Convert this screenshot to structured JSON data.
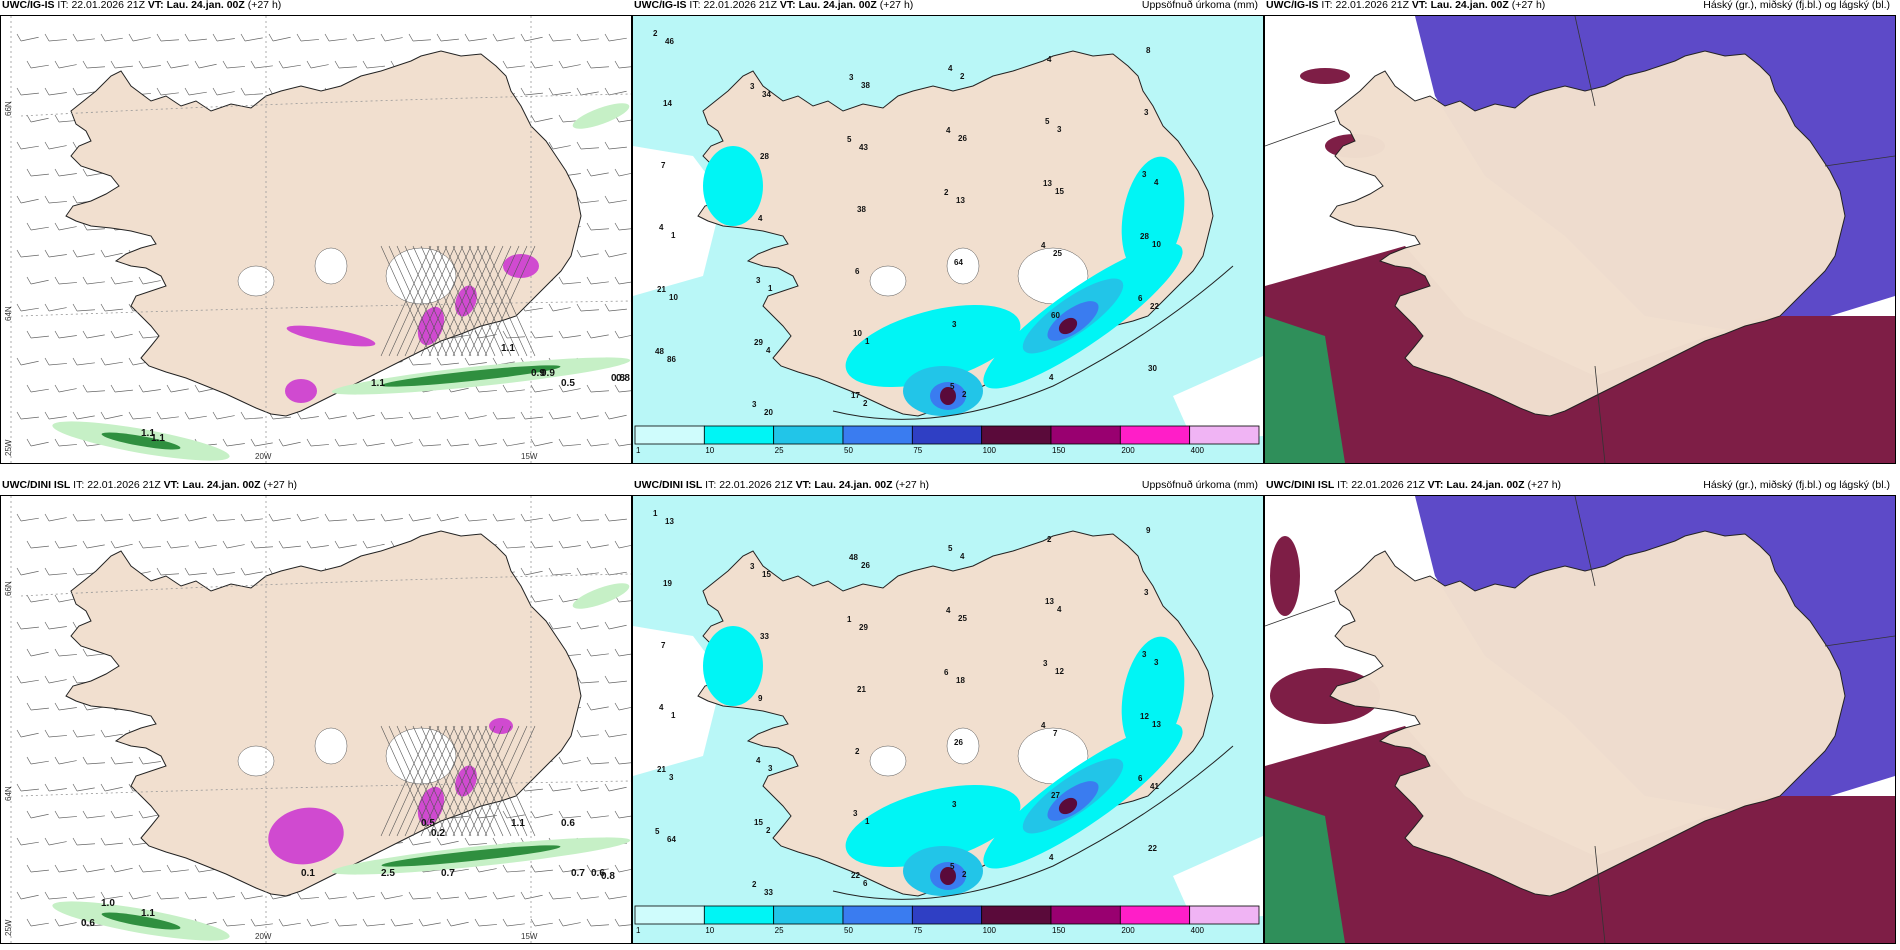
{
  "rows": [
    {
      "model_tag": "UWC/IG-IS",
      "it_label": "IT:",
      "it_value": "22.01.2026 21Z",
      "vt_label": "VT:",
      "vt_value": "Lau. 24.jan. 00Z",
      "lead": "(+27 h)"
    },
    {
      "model_tag": "UWC/DINI ISL",
      "it_label": "IT:",
      "it_value": "22.01.2026 21Z",
      "vt_label": "VT:",
      "vt_value": "Lau. 24.jan. 00Z",
      "lead": "(+27 h)"
    }
  ],
  "panel_titles": {
    "precip": "Uppsöfnuð úrkoma (mm)",
    "cloud": "Háský (gr.), miðský (fj.bl.) og lágský (bl.)"
  },
  "axis": {
    "lat_66": "66N",
    "lat_64": "64N",
    "lon_25": "25W",
    "lon_20": "20W",
    "lon_15": "15W"
  },
  "colorbar": {
    "labels": [
      "1",
      "10",
      "25",
      "50",
      "75",
      "100",
      "150",
      "200",
      "400"
    ],
    "colors": [
      "#cffcfc",
      "#00f5f5",
      "#22c5e8",
      "#3a7cf0",
      "#2f3fc4",
      "#5a0a3a",
      "#990070",
      "#ff1ec8",
      "#f0b4f4"
    ]
  },
  "colors": {
    "land": "#f1dfcf",
    "sea_precip": "#b9f7f7",
    "cloud_high": "#5d4ac8",
    "cloud_mid": "#7e1e46",
    "cloud_low": "#2f8f5a"
  },
  "top_panel1_labels": [
    "0.5",
    "0.8",
    "1.1",
    "0.9",
    "1.1",
    "0.8",
    "0.9",
    "1.1",
    "1.1"
  ],
  "top_precip_labels": [
    "2",
    "3",
    "5",
    "2",
    "4",
    "6",
    "48",
    "3",
    "3",
    "4",
    "13",
    "28",
    "21",
    "29",
    "17",
    "4",
    "5",
    "3",
    "4",
    "3",
    "10",
    "5",
    "4",
    "3",
    "7",
    "4",
    "6",
    "3",
    "4",
    "8",
    "14",
    "28",
    "38",
    "64",
    "60",
    "30",
    "46",
    "34",
    "43",
    "13",
    "25",
    "22",
    "86",
    "20",
    "38",
    "26",
    "15",
    "10",
    "10",
    "4",
    "2",
    "2",
    "3",
    "4",
    "1",
    "1",
    "1",
    "2"
  ],
  "bottom_panel1_labels": [
    "1.1",
    "0.6",
    "0.7",
    "0.6",
    "0.8",
    "1.1",
    "2.5",
    "0.7",
    "0.5",
    "0.2",
    "0.1",
    "1.0",
    "0.6"
  ],
  "bottom_precip_labels": [
    "1",
    "3",
    "1",
    "6",
    "4",
    "6",
    "5",
    "2",
    "48",
    "4",
    "3",
    "12",
    "21",
    "15",
    "22",
    "5",
    "13",
    "3",
    "4",
    "4",
    "3",
    "5",
    "2",
    "3",
    "7",
    "9",
    "2",
    "3",
    "4",
    "9",
    "19",
    "33",
    "21",
    "26",
    "27",
    "22",
    "13",
    "15",
    "29",
    "18",
    "7",
    "41",
    "64",
    "33",
    "26",
    "25",
    "12",
    "13",
    "3",
    "2",
    "6",
    "4",
    "4",
    "3",
    "1",
    "3",
    "1",
    "2"
  ]
}
